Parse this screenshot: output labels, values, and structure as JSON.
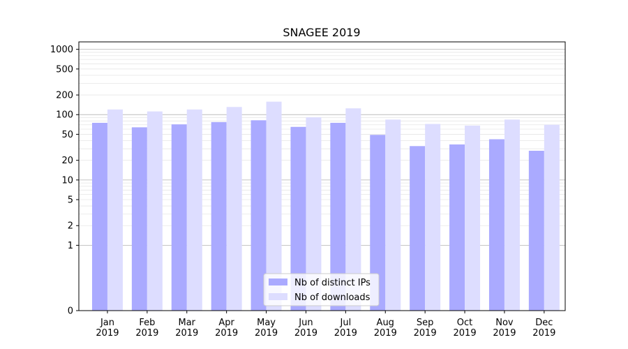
{
  "chart_data": {
    "type": "bar",
    "title": "SNAGEE 2019",
    "xlabel": "",
    "ylabel": "",
    "yscale": "symlog",
    "ylim": [
      0,
      1300
    ],
    "y_ticks": [
      0,
      1,
      2,
      5,
      10,
      20,
      50,
      100,
      200,
      500,
      1000
    ],
    "y_tick_labels": [
      "0",
      "1",
      "2",
      "5",
      "10",
      "20",
      "50",
      "100",
      "200",
      "500",
      "1000"
    ],
    "grid": "horizontal",
    "legend_position": "bottom-center",
    "categories": [
      [
        "Jan",
        "2019"
      ],
      [
        "Feb",
        "2019"
      ],
      [
        "Mar",
        "2019"
      ],
      [
        "Apr",
        "2019"
      ],
      [
        "May",
        "2019"
      ],
      [
        "Jun",
        "2019"
      ],
      [
        "Jul",
        "2019"
      ],
      [
        "Aug",
        "2019"
      ],
      [
        "Sep",
        "2019"
      ],
      [
        "Oct",
        "2019"
      ],
      [
        "Nov",
        "2019"
      ],
      [
        "Dec",
        "2019"
      ]
    ],
    "series": [
      {
        "name": "Nb of distinct IPs",
        "color": "#aaaaff",
        "values": [
          75,
          64,
          71,
          77,
          82,
          65,
          75,
          49,
          33,
          35,
          42,
          28
        ]
      },
      {
        "name": "Nb of downloads",
        "color": "#ddddff",
        "values": [
          120,
          112,
          120,
          131,
          158,
          91,
          125,
          84,
          72,
          68,
          84,
          70
        ]
      }
    ]
  }
}
